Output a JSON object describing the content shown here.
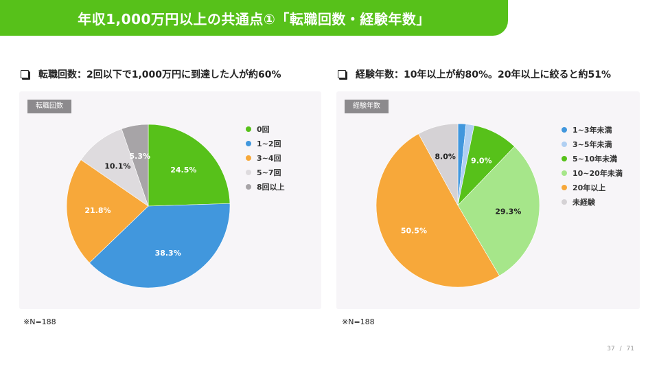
{
  "header": {
    "title": "年収1,000万円以上の共通点①「転職回数・経験年数」",
    "bg_color": "#57c11a"
  },
  "left": {
    "heading": "転職回数：2回以下で1,000万円に到達した人が約60%",
    "panel_tag": "転職回数",
    "note": "※N=188",
    "legend": [
      {
        "label": "0回",
        "color": "#57c11a"
      },
      {
        "label": "1~2回",
        "color": "#4197dd"
      },
      {
        "label": "3~4回",
        "color": "#f7a83a"
      },
      {
        "label": "5~7回",
        "color": "#dedbde"
      },
      {
        "label": "8回以上",
        "color": "#a7a4a7"
      }
    ]
  },
  "right": {
    "heading": "経験年数：10年以上が約80%。20年以上に絞ると約51%",
    "panel_tag": "経験年数",
    "note": "※N=188",
    "legend": [
      {
        "label": "1~3年未満",
        "color": "#4197dd"
      },
      {
        "label": "3~5年未満",
        "color": "#b0cff2"
      },
      {
        "label": "5~10年未満",
        "color": "#57c11a"
      },
      {
        "label": "10~20年未満",
        "color": "#a6e68a"
      },
      {
        "label": "20年以上",
        "color": "#f7a83a"
      },
      {
        "label": "未経験",
        "color": "#d5d2d5"
      }
    ]
  },
  "pager": {
    "current": "37",
    "separator": "/",
    "total": "71"
  },
  "chart_data": [
    {
      "type": "pie",
      "title": "転職回数",
      "categories": [
        "0回",
        "1~2回",
        "3~4回",
        "5~7回",
        "8回以上"
      ],
      "values": [
        24.5,
        38.3,
        21.8,
        10.1,
        5.3
      ],
      "labels": [
        "24.5%",
        "38.3%",
        "21.8%",
        "10.1%",
        "5.3%"
      ],
      "colors": [
        "#57c11a",
        "#4197dd",
        "#f7a83a",
        "#dedbde",
        "#a7a4a7"
      ],
      "label_colors": [
        "#ffffff",
        "#ffffff",
        "#ffffff",
        "#222222",
        "#ffffff"
      ],
      "legend_position": "right",
      "note": "※N=188"
    },
    {
      "type": "pie",
      "title": "経験年数",
      "categories": [
        "1~3年未満",
        "3~5年未満",
        "5~10年未満",
        "10~20年未満",
        "20年以上",
        "未経験"
      ],
      "values": [
        1.6,
        1.6,
        9.0,
        29.3,
        50.5,
        8.0
      ],
      "labels": [
        "",
        "",
        "9.0%",
        "29.3%",
        "50.5%",
        "8.0%"
      ],
      "colors": [
        "#4197dd",
        "#b0cff2",
        "#57c11a",
        "#a6e68a",
        "#f7a83a",
        "#d5d2d5"
      ],
      "label_colors": [
        "#ffffff",
        "#ffffff",
        "#ffffff",
        "#222222",
        "#ffffff",
        "#222222"
      ],
      "legend_position": "right",
      "note": "※N=188"
    }
  ]
}
